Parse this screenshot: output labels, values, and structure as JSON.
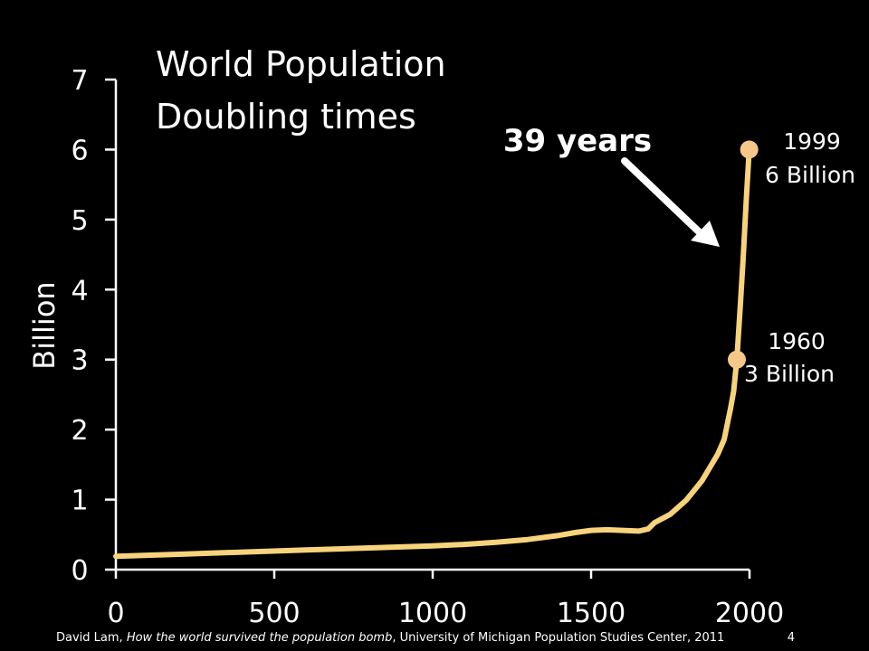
{
  "chart_data": {
    "type": "line",
    "title": "World Population",
    "subtitle": "Doubling times",
    "xlabel": "",
    "ylabel": "Billion",
    "xlim": [
      0,
      2000
    ],
    "ylim": [
      0,
      7
    ],
    "x_ticks": [
      "0",
      "500",
      "1000",
      "1500",
      "2000"
    ],
    "y_ticks": [
      "0",
      "1",
      "2",
      "3",
      "4",
      "5",
      "6",
      "7"
    ],
    "grid": false,
    "line_color": "#F7D37C",
    "marker_color": "#F5C88A",
    "series": [
      {
        "x": [
          0,
          200,
          400,
          600,
          800,
          1000,
          1100,
          1200,
          1300,
          1400,
          1450,
          1500,
          1550,
          1600,
          1650,
          1680,
          1700,
          1750,
          1800,
          1850,
          1900,
          1920,
          1940,
          1950,
          1960,
          1970,
          1980,
          1990,
          1999
        ],
        "y": [
          0.19,
          0.22,
          0.25,
          0.28,
          0.31,
          0.34,
          0.36,
          0.39,
          0.43,
          0.49,
          0.53,
          0.56,
          0.57,
          0.56,
          0.55,
          0.58,
          0.67,
          0.79,
          0.99,
          1.27,
          1.65,
          1.86,
          2.3,
          2.55,
          3.0,
          3.7,
          4.45,
          5.3,
          6.0
        ]
      }
    ],
    "markers": [
      {
        "x": 1960,
        "y": 3,
        "year": "1960",
        "value": "3 Billion"
      },
      {
        "x": 1999,
        "y": 6,
        "year": "1999",
        "value": "6 Billion"
      }
    ],
    "callout": "39 years",
    "source": {
      "prefix": "David Lam, ",
      "italic": "How the world survived the population bomb",
      "suffix": ", University of Michigan Population Studies Center, 2011"
    },
    "page_number": "4"
  }
}
